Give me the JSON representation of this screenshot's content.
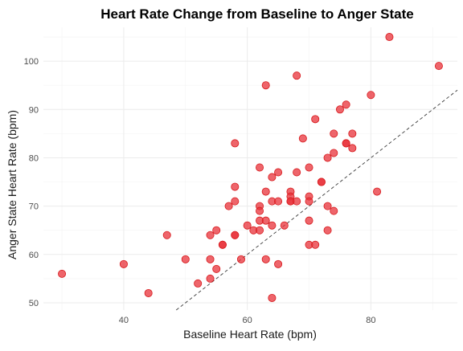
{
  "chart_data": {
    "type": "scatter",
    "title": "Heart Rate Change from Baseline to Anger State",
    "xlabel": "Baseline Heart Rate (bpm)",
    "ylabel": "Anger State Heart Rate (bpm)",
    "xlim": [
      27,
      94
    ],
    "ylim": [
      48.5,
      107
    ],
    "xticks": [
      40,
      60,
      80
    ],
    "xticks_minor": [
      30,
      50,
      70,
      90
    ],
    "yticks": [
      50,
      60,
      70,
      80,
      90,
      100
    ],
    "yticks_minor": [
      55,
      65,
      75,
      85,
      95,
      105
    ],
    "grid": true,
    "reference_line": {
      "type": "identity",
      "style": "dashed",
      "slope": 1,
      "intercept": 0
    },
    "point_color": "#e8323a",
    "point_opacity": 0.75,
    "series": [
      {
        "x": [
          30,
          40,
          44,
          47,
          50,
          52,
          54,
          54,
          54,
          55,
          55,
          56,
          56,
          57,
          58,
          58,
          58,
          58,
          58,
          59,
          60,
          61,
          62,
          62,
          62,
          62,
          62,
          63,
          63,
          63,
          63,
          64,
          64,
          64,
          64,
          65,
          65,
          65,
          66,
          67,
          67,
          67,
          67,
          68,
          68,
          68,
          69,
          70,
          70,
          70,
          70,
          70,
          71,
          71,
          72,
          72,
          73,
          73,
          73,
          74,
          74,
          74,
          75,
          76,
          76,
          76,
          77,
          77,
          80,
          81,
          83,
          91
        ],
        "y": [
          56,
          58,
          52,
          64,
          59,
          54,
          64,
          59,
          55,
          65,
          57,
          62,
          62,
          70,
          83,
          74,
          71,
          64,
          64,
          59,
          66,
          65,
          78,
          70,
          69,
          67,
          65,
          95,
          73,
          67,
          59,
          76,
          71,
          66,
          51,
          77,
          71,
          58,
          66,
          73,
          72,
          71,
          71,
          97,
          77,
          71,
          84,
          78,
          72,
          71,
          67,
          62,
          88,
          62,
          75,
          75,
          80,
          70,
          65,
          85,
          81,
          69,
          90,
          91,
          83,
          83,
          85,
          82,
          93,
          73,
          105,
          99
        ]
      }
    ]
  }
}
